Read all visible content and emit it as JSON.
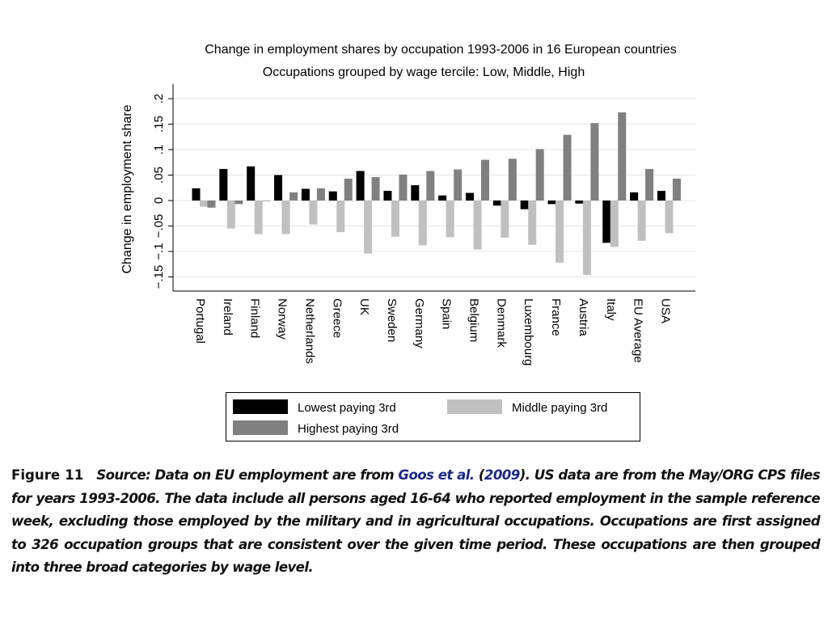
{
  "chart_data": {
    "type": "bar",
    "title": "Change in employment shares by occupation 1993-2006 in 16 European countries",
    "subtitle": "Occupations grouped by wage tercile: Low, Middle, High",
    "ylabel": "Change in employment share",
    "xlabel": "",
    "ylim": [
      -0.17,
      0.22
    ],
    "yticks": [
      -0.15,
      -0.1,
      -0.05,
      0,
      0.05,
      0.1,
      0.15,
      0.2
    ],
    "ytick_labels": [
      "−.15",
      "−.1",
      "−.05",
      "0",
      ".05",
      ".1",
      ".15",
      ".2"
    ],
    "grid": true,
    "legend_position": "bottom",
    "categories": [
      "Portugal",
      "Ireland",
      "Finland",
      "Norway",
      "Netherlands",
      "Greece",
      "UK",
      "Sweden",
      "Germany",
      "Spain",
      "Belgium",
      "Denmark",
      "Luxembourg",
      "France",
      "Austria",
      "Italy",
      "EU Average",
      "USA"
    ],
    "series": [
      {
        "name": "Lowest paying 3rd",
        "color": "#000000",
        "values": [
          0.024,
          0.062,
          0.067,
          0.05,
          0.023,
          0.018,
          0.058,
          0.019,
          0.03,
          0.01,
          0.015,
          -0.01,
          -0.017,
          -0.007,
          -0.006,
          -0.083,
          0.016,
          0.019
        ]
      },
      {
        "name": "Middle paying 3rd",
        "color": "#c0c0c0",
        "values": [
          -0.012,
          -0.055,
          -0.066,
          -0.066,
          -0.047,
          -0.062,
          -0.104,
          -0.071,
          -0.088,
          -0.072,
          -0.096,
          -0.073,
          -0.087,
          -0.122,
          -0.146,
          -0.091,
          -0.079,
          -0.064
        ]
      },
      {
        "name": "Highest paying 3rd",
        "color": "#808080",
        "values": [
          -0.014,
          -0.007,
          -0.001,
          0.016,
          0.024,
          0.043,
          0.046,
          0.051,
          0.058,
          0.061,
          0.08,
          0.082,
          0.101,
          0.129,
          0.152,
          0.173,
          0.062,
          0.043
        ]
      }
    ]
  },
  "caption": {
    "figure_label": "Figure 11",
    "text_before": "Source: Data on EU employment are from ",
    "link_author": "Goos et al.",
    "paren_open": " (",
    "link_year": "2009",
    "text_after": "). US data are from the May/ORG CPS files for years 1993-2006. The data include all persons aged 16-64 who reported employment in the sample reference week, excluding those employed by the military and in agricultural occupations. Occupations are first assigned to 326 occupation groups that are consistent over the given time period. These occupations are then grouped into three broad categories by wage level."
  }
}
